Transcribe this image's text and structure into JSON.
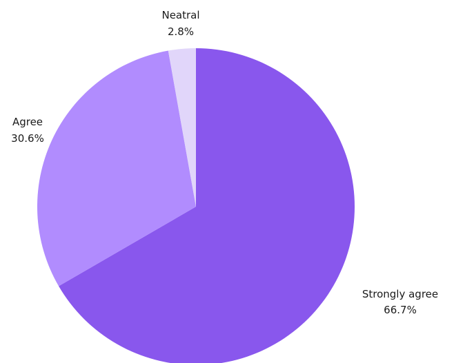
{
  "chart_data": {
    "type": "pie",
    "start": "12 o'clock",
    "direction": "clockwise",
    "slices": [
      {
        "label": "Strongly agree",
        "value": 66.7,
        "display": "66.7%",
        "color": "#8957ED"
      },
      {
        "label": "Agree",
        "value": 30.6,
        "display": "30.6%",
        "color": "#B18CFE"
      },
      {
        "label": "Neatral",
        "value": 2.8,
        "display": "2.8%",
        "color": "#E1D6FA"
      }
    ]
  }
}
